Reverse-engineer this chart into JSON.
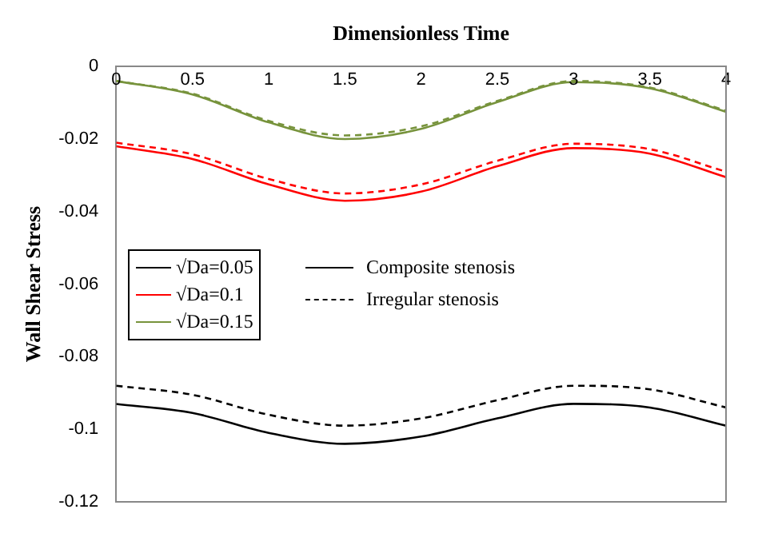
{
  "chart_data": {
    "type": "line",
    "xlabel": "Dimensionless Time",
    "ylabel": "Wall Shear Stress",
    "xlim": [
      0,
      4
    ],
    "xticks": [
      0,
      0.5,
      1,
      1.5,
      2,
      2.5,
      3,
      3.5,
      4
    ],
    "ylim": [
      -0.12,
      0
    ],
    "yticks": [
      -0.12,
      -0.1,
      -0.08,
      -0.06,
      -0.04,
      -0.02,
      0
    ],
    "grid": false,
    "legend": "left",
    "marker": "none",
    "annotations": [
      "Composite stenosis",
      "Irregular stenosis"
    ],
    "series": [
      {
        "name": "√Da=0.05",
        "color": "#000000",
        "line_style": "solid",
        "x": [
          0,
          0.5,
          1,
          1.5,
          2,
          2.5,
          3,
          3.5,
          4
        ],
        "values": [
          -0.093,
          -0.0955,
          -0.101,
          -0.104,
          -0.102,
          -0.097,
          -0.093,
          -0.094,
          -0.099
        ]
      },
      {
        "color": "#000000",
        "line_style": "dashed",
        "x": [
          0,
          0.5,
          1,
          1.5,
          2,
          2.5,
          3,
          3.5,
          4
        ],
        "values": [
          -0.088,
          -0.0905,
          -0.096,
          -0.099,
          -0.097,
          -0.092,
          -0.088,
          -0.089,
          -0.094
        ]
      },
      {
        "name": "√Da=0.1",
        "color": "#ff0000",
        "line_style": "solid",
        "x": [
          0,
          0.5,
          1,
          1.5,
          2,
          2.5,
          3,
          3.5,
          4
        ],
        "values": [
          -0.022,
          -0.0255,
          -0.0325,
          -0.037,
          -0.0345,
          -0.0275,
          -0.0225,
          -0.024,
          -0.0305
        ]
      },
      {
        "color": "#ff0000",
        "line_style": "dashed",
        "x": [
          0,
          0.5,
          1,
          1.5,
          2,
          2.5,
          3,
          3.5,
          4
        ],
        "values": [
          -0.021,
          -0.0242,
          -0.031,
          -0.035,
          -0.0325,
          -0.026,
          -0.0213,
          -0.0228,
          -0.029
        ]
      },
      {
        "name": "√Da=0.15",
        "color": "#77933c",
        "line_style": "solid",
        "x": [
          0,
          0.5,
          1,
          1.5,
          2,
          2.5,
          3,
          3.5,
          4
        ],
        "values": [
          -0.004,
          -0.0077,
          -0.0154,
          -0.02,
          -0.0172,
          -0.0098,
          -0.0043,
          -0.006,
          -0.0125
        ]
      },
      {
        "color": "#77933c",
        "line_style": "dashed",
        "x": [
          0,
          0.5,
          1,
          1.5,
          2,
          2.5,
          3,
          3.5,
          4
        ],
        "values": [
          -0.004,
          -0.0075,
          -0.015,
          -0.019,
          -0.0165,
          -0.0095,
          -0.004,
          -0.0058,
          -0.0122
        ]
      }
    ]
  }
}
